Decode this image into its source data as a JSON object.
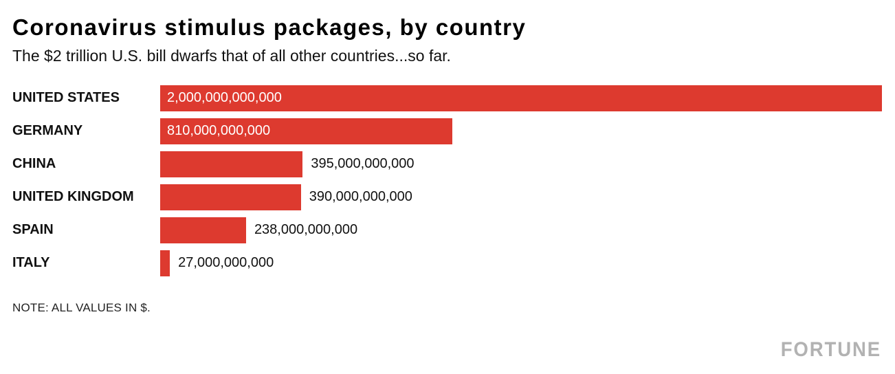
{
  "header": {
    "title": "Coronavirus stimulus packages, by country",
    "subtitle": "The $2 trillion U.S. bill dwarfs that of all other countries...so far."
  },
  "note": "NOTE: ALL VALUES IN $.",
  "brand": "FORTUNE",
  "colors": {
    "bar": "#dd3a2f",
    "value_inside": "#ffffff",
    "value_outside": "#111111",
    "brand": "#b2b2b2"
  },
  "chart_data": {
    "type": "bar",
    "orientation": "horizontal",
    "title": "Coronavirus stimulus packages, by country",
    "subtitle": "The $2 trillion U.S. bill dwarfs that of all other countries...so far.",
    "xlabel": "",
    "ylabel": "",
    "xlim": [
      0,
      2000000000000
    ],
    "grid": false,
    "legend": false,
    "categories": [
      "UNITED STATES",
      "GERMANY",
      "CHINA",
      "UNITED KINGDOM",
      "SPAIN",
      "ITALY"
    ],
    "values": [
      2000000000000,
      810000000000,
      395000000000,
      390000000000,
      238000000000,
      27000000000
    ],
    "value_labels": [
      "2,000,000,000,000",
      "810,000,000,000",
      "395,000,000,000",
      "390,000,000,000",
      "238,000,000,000",
      "27,000,000,000"
    ],
    "label_placement": [
      "inside",
      "inside",
      "outside",
      "outside",
      "outside",
      "outside"
    ]
  }
}
